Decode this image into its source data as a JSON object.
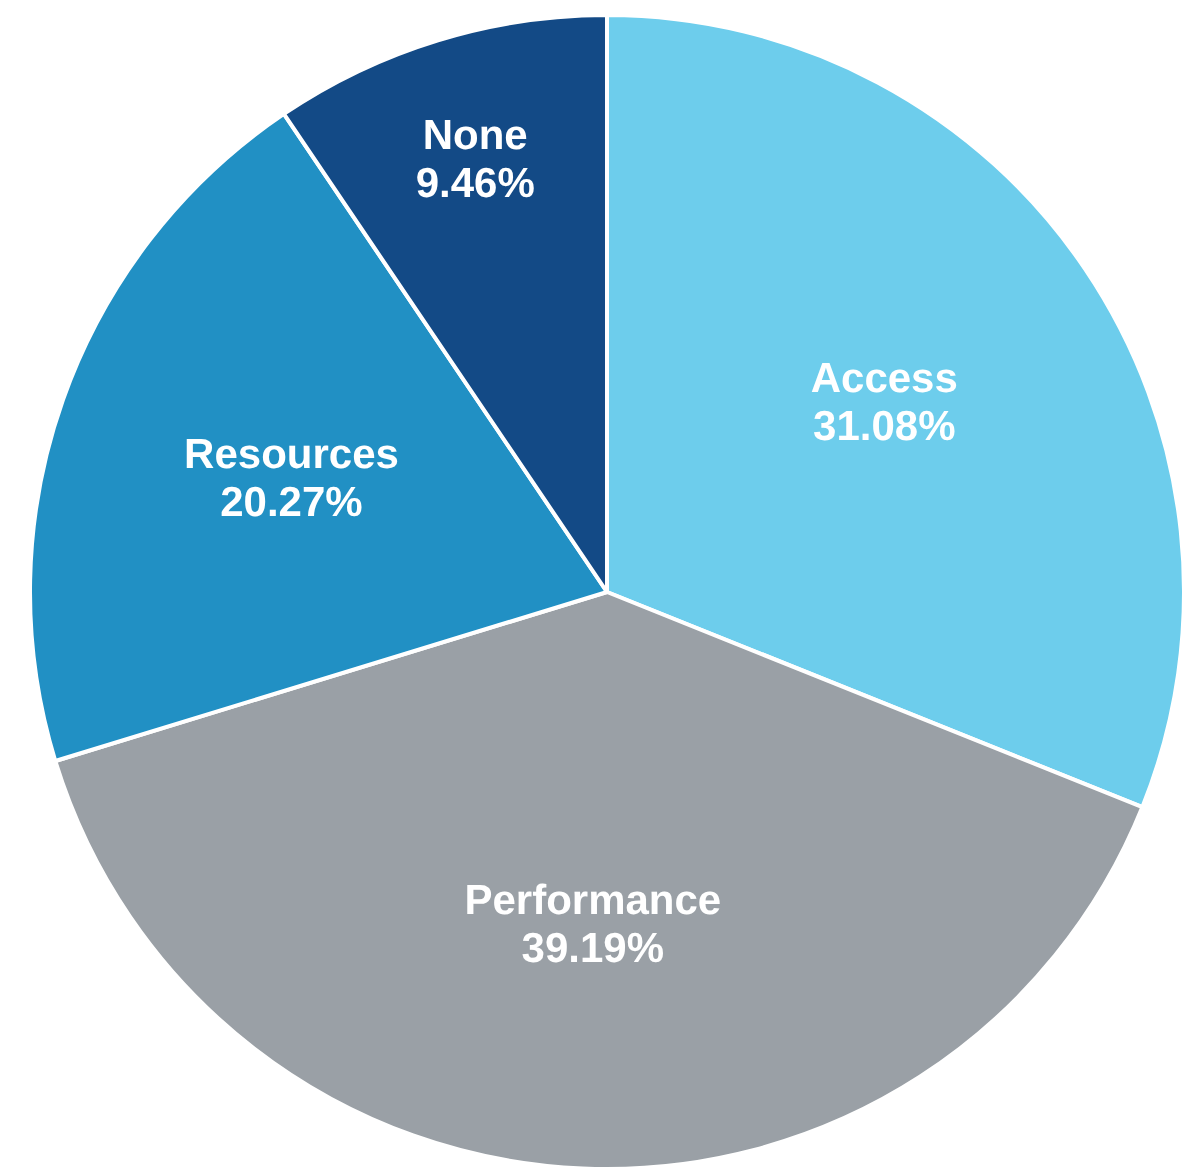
{
  "chart_data": {
    "type": "pie",
    "categories": [
      "Access",
      "Performance",
      "Resources",
      "None"
    ],
    "values": [
      31.08,
      39.19,
      20.27,
      9.46
    ],
    "colors": [
      "#6dcdec",
      "#9aa0a6",
      "#2190c4",
      "#134a86"
    ],
    "value_labels": [
      "31.08%",
      "39.19%",
      "20.27%",
      "9.46%"
    ],
    "legend": false
  }
}
